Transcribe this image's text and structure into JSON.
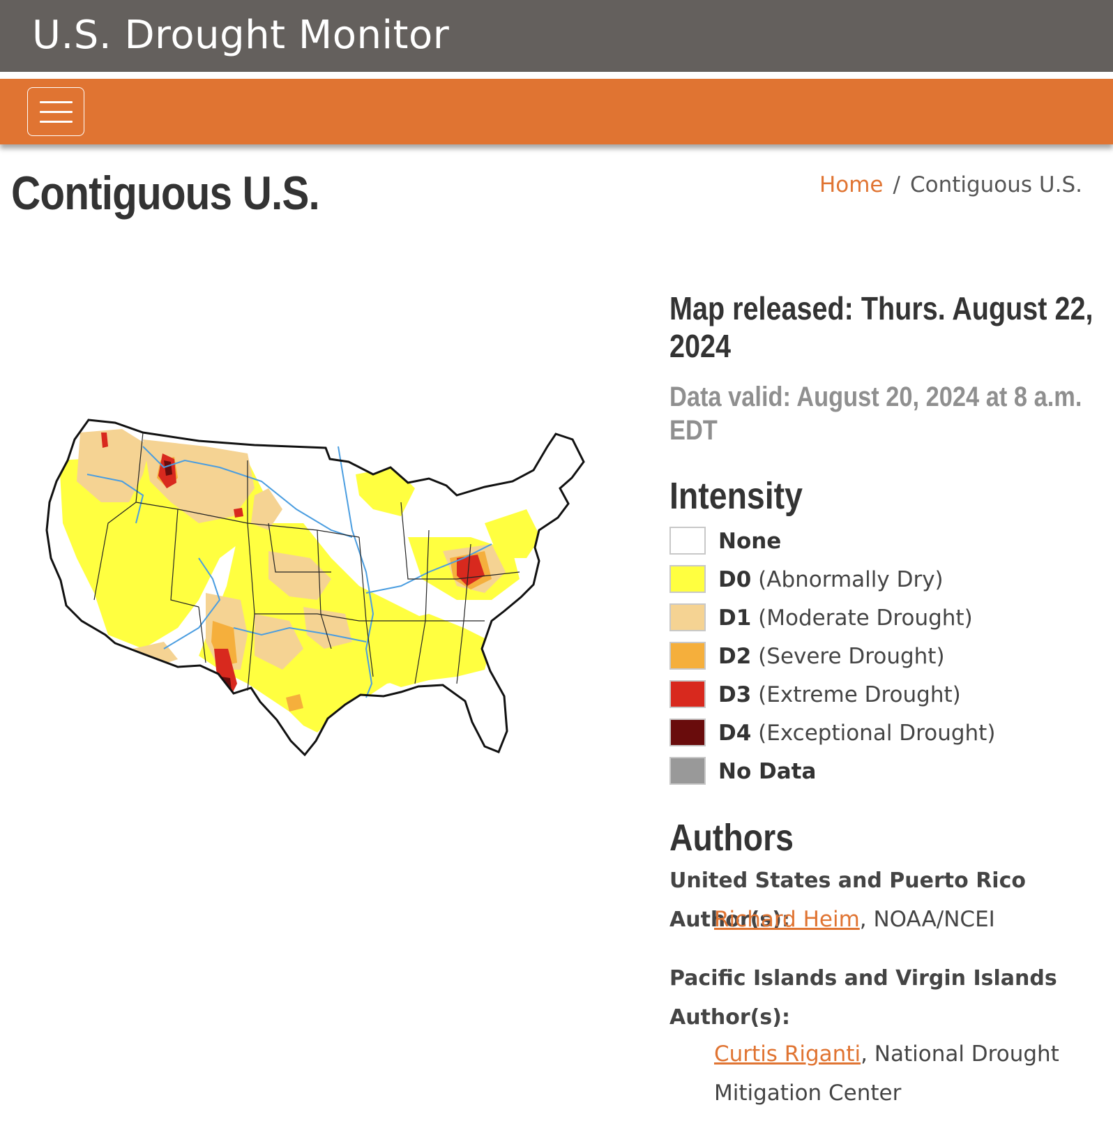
{
  "header": {
    "site_title": "U.S. Drought Monitor"
  },
  "nav": {
    "menu_icon": "hamburger-menu-icon"
  },
  "page": {
    "title": "Contiguous U.S."
  },
  "breadcrumb": {
    "home": "Home",
    "separator": "/",
    "current": "Contiguous U.S."
  },
  "map": {
    "type": "drought-intensity-map"
  },
  "info": {
    "released_line1": "Map released: Thurs. August 22,",
    "released_line2": "2024",
    "valid_line1": "Data valid: August 20, 2024 at 8 a.m.",
    "valid_line2": "EDT"
  },
  "legend": {
    "heading": "Intensity",
    "items": [
      {
        "code": "",
        "label": "None",
        "color": "#ffffff"
      },
      {
        "code": "D0",
        "label": "(Abnormally Dry)",
        "color": "#ffff40"
      },
      {
        "code": "D1",
        "label": "(Moderate Drought)",
        "color": "#f5d393"
      },
      {
        "code": "D2",
        "label": "(Severe Drought)",
        "color": "#f5af3c"
      },
      {
        "code": "D3",
        "label": "(Extreme Drought)",
        "color": "#d8291e"
      },
      {
        "code": "D4",
        "label": "(Exceptional Drought)",
        "color": "#690c0c"
      },
      {
        "code": "",
        "label": "No Data",
        "color": "#999999"
      }
    ]
  },
  "authors": {
    "heading": "Authors",
    "us_heading": "United States and Puerto Rico Author(s):",
    "us_author_name": "Richard Heim",
    "us_author_org": ", NOAA/NCEI",
    "pacific_heading_line1": "Pacific Islands and Virgin Islands",
    "pacific_heading_line2": "Author(s):",
    "pacific_author_name": "Curtis Riganti",
    "pacific_author_org_line1": ", National Drought",
    "pacific_author_org_line2": "Mitigation Center"
  },
  "colors": {
    "brand_orange": "#e07432",
    "header_gray": "#64605d"
  }
}
